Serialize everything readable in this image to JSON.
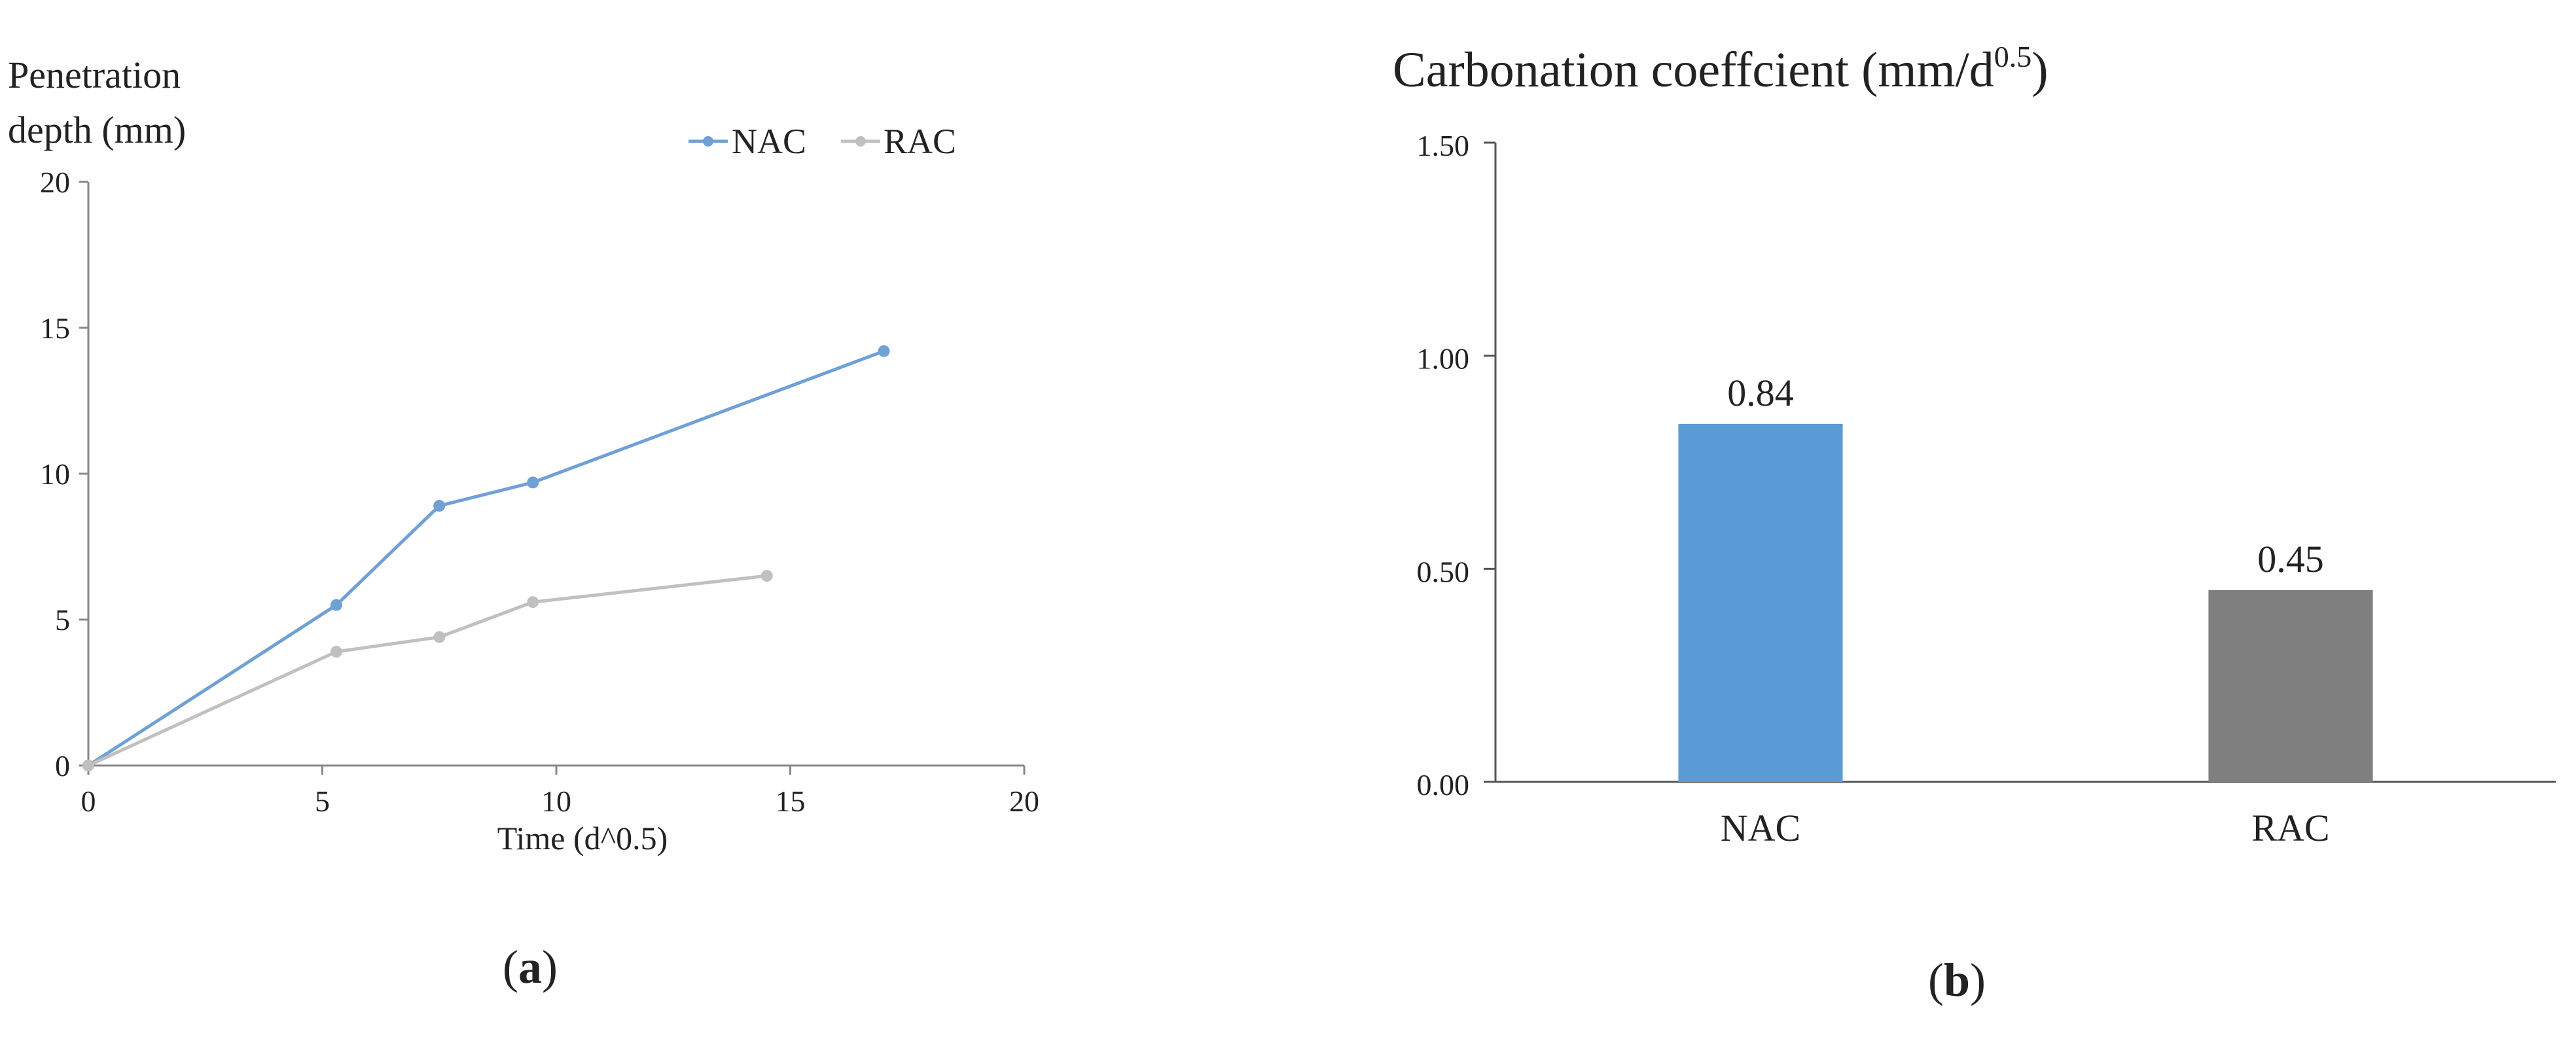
{
  "chart_data": [
    {
      "type": "line",
      "panel_label": "a",
      "ylabel_lines": [
        "Penetration",
        "depth (mm)"
      ],
      "xlabel": "Time (d^0.5)",
      "xlim": [
        0,
        20
      ],
      "ylim": [
        0,
        20
      ],
      "xticks": [
        "0",
        "5",
        "10",
        "15",
        "20"
      ],
      "yticks": [
        "0",
        "5",
        "10",
        "15",
        "20"
      ],
      "legend_position": "top-right",
      "series": [
        {
          "name": "NAC",
          "color": "#6fa0d6",
          "points": [
            [
              0,
              0
            ],
            [
              5.3,
              5.5
            ],
            [
              7.5,
              8.9
            ],
            [
              9.5,
              9.7
            ],
            [
              17.0,
              14.2
            ]
          ]
        },
        {
          "name": "RAC",
          "color": "#c0c0c0",
          "points": [
            [
              0,
              0
            ],
            [
              5.3,
              3.9
            ],
            [
              7.5,
              4.4
            ],
            [
              9.5,
              5.6
            ],
            [
              14.5,
              6.5
            ]
          ]
        }
      ]
    },
    {
      "type": "bar",
      "panel_label": "b",
      "title_main": "Carbonation coeffcient (mm/d",
      "title_sup": "0.5",
      "title_end": ")",
      "categories": [
        "NAC",
        "RAC"
      ],
      "values": [
        0.84,
        0.45
      ],
      "data_labels": [
        "0.84",
        "0.45"
      ],
      "colors": [
        "#5b9bd5",
        "#7f7f7f"
      ],
      "ylim": [
        0,
        1.5
      ],
      "yticks": [
        "0.00",
        "0.50",
        "1.00",
        "1.50"
      ]
    }
  ]
}
